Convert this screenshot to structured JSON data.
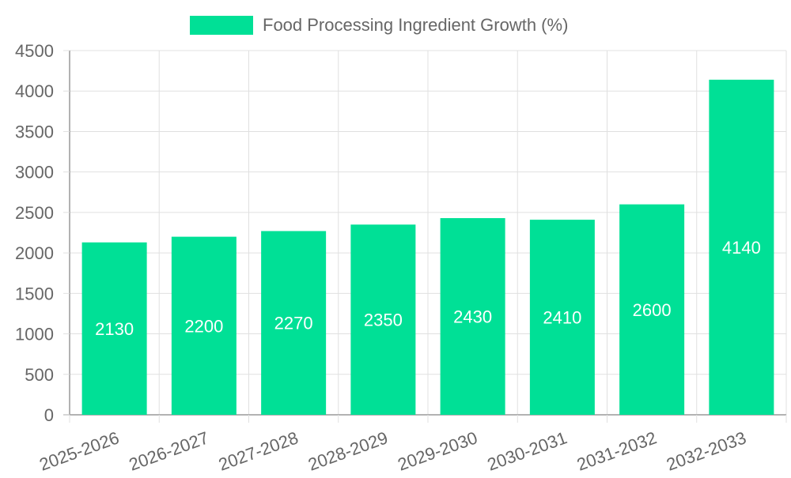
{
  "chart_data": {
    "type": "bar",
    "categories": [
      "2025-2026",
      "2026-2027",
      "2027-2028",
      "2028-2029",
      "2029-2030",
      "2030-2031",
      "2031-2032",
      "2032-2033"
    ],
    "series": [
      {
        "name": "Food Processing Ingredient Growth (%)",
        "values": [
          2130,
          2200,
          2270,
          2350,
          2430,
          2410,
          2600,
          4140
        ],
        "color": "#00e096"
      }
    ],
    "data_labels": [
      "2130",
      "2200",
      "2270",
      "2350",
      "2430",
      "2410",
      "2600",
      "4140"
    ],
    "y_ticks": [
      "0",
      "500",
      "1000",
      "1500",
      "2000",
      "2500",
      "3000",
      "3500",
      "4000",
      "4500"
    ],
    "ylim": [
      0,
      4500
    ],
    "grid": true,
    "legend_position": "top-center",
    "colors": {
      "bar": "#00e096",
      "grid": "#e0e0e0",
      "axis": "#999999",
      "tick_text": "#666666",
      "data_label_text": "#ffffff",
      "legend_text": "#666666"
    }
  }
}
